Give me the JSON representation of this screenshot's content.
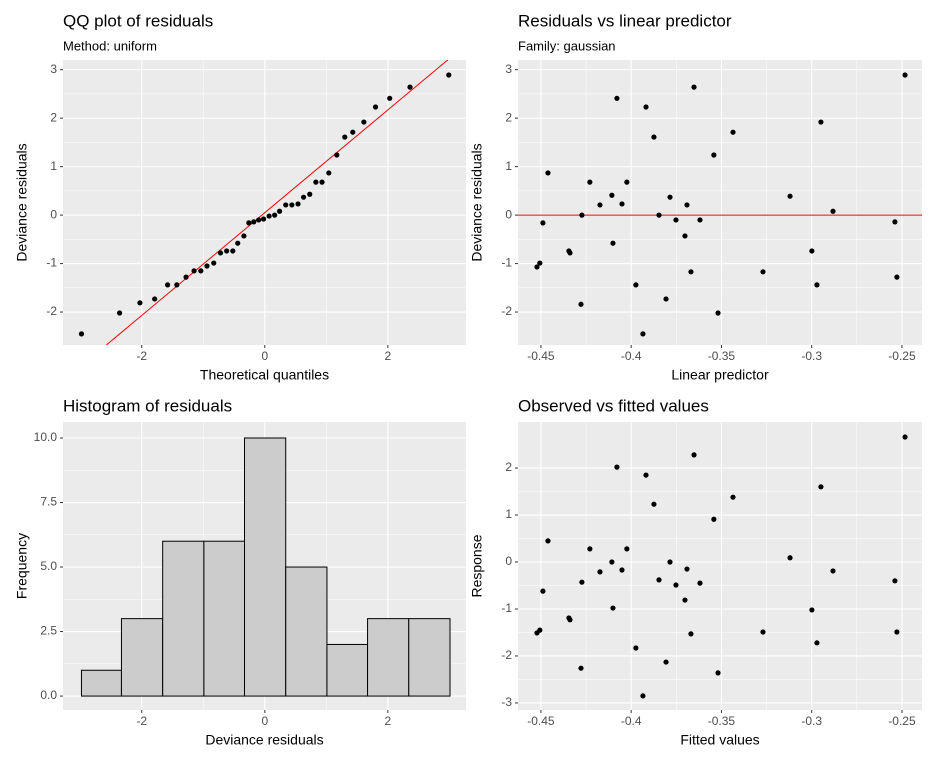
{
  "chart_data": [
    {
      "type": "qq",
      "title": "QQ plot of residuals",
      "subtitle": "Method: uniform",
      "x_label": "Theoretical quantiles",
      "y_label": "Deviance residuals",
      "x": [
        -2.98,
        -2.36,
        -2.03,
        -1.79,
        -1.58,
        -1.43,
        -1.28,
        -1.15,
        -1.04,
        -0.94,
        -0.83,
        -0.72,
        -0.62,
        -0.52,
        -0.44,
        -0.34,
        -0.26,
        -0.18,
        -0.1,
        -0.02,
        0.07,
        0.16,
        0.24,
        0.34,
        0.44,
        0.54,
        0.63,
        0.73,
        0.83,
        0.93,
        1.04,
        1.17,
        1.3,
        1.43,
        1.61,
        1.8,
        2.03,
        2.36,
        2.99
      ],
      "values": [
        -2.45,
        -2.02,
        -1.81,
        -1.73,
        -1.44,
        -1.44,
        -1.28,
        -1.15,
        -1.15,
        -1.05,
        -0.99,
        -0.78,
        -0.74,
        -0.74,
        -0.58,
        -0.43,
        -0.16,
        -0.14,
        -0.1,
        -0.08,
        -0.02,
        0,
        0.08,
        0.21,
        0.21,
        0.23,
        0.37,
        0.43,
        0.68,
        0.68,
        0.87,
        1.24,
        1.61,
        1.71,
        1.92,
        2.23,
        2.41,
        2.64,
        2.89
      ],
      "color": "#000000",
      "ref_line": {
        "intercept": 0.05,
        "slope": 1.06,
        "color": "#ff0000"
      },
      "xlim": [
        -3.28,
        3.27
      ],
      "ylim": [
        -2.68,
        3.2
      ],
      "xticks": [
        -2,
        0,
        2
      ],
      "yticks": [
        -2,
        -1,
        0,
        1,
        2,
        3
      ],
      "grid": true
    },
    {
      "type": "scatter",
      "title": "Residuals vs linear predictor",
      "subtitle": "Family: gaussian",
      "x_label": "Linear predictor",
      "y_label": "Deviance residuals",
      "x": [
        -0.4522,
        -0.4506,
        -0.4489,
        -0.4461,
        -0.4345,
        -0.4339,
        -0.4278,
        -0.4273,
        -0.4229,
        -0.4173,
        -0.4107,
        -0.4101,
        -0.4079,
        -0.4051,
        -0.4024,
        -0.3974,
        -0.3935,
        -0.3918,
        -0.3874,
        -0.3846,
        -0.3807,
        -0.3785,
        -0.3752,
        -0.3702,
        -0.3691,
        -0.3669,
        -0.3652,
        -0.3619,
        -0.3542,
        -0.3519,
        -0.3436,
        -0.327,
        -0.312,
        -0.2999,
        -0.2971,
        -0.2949,
        -0.2882,
        -0.2539,
        -0.2528,
        -0.2483
      ],
      "values": [
        -1.07,
        -0.99,
        -0.16,
        0.87,
        -0.74,
        -0.78,
        -1.84,
        0,
        0.68,
        0.21,
        0.41,
        -0.58,
        2.41,
        0.23,
        0.68,
        -1.44,
        -2.45,
        2.23,
        1.61,
        0,
        -1.73,
        0.37,
        -0.1,
        -0.43,
        0.21,
        -1.17,
        2.64,
        -0.1,
        1.24,
        -2.02,
        1.71,
        -1.17,
        0.39,
        -0.74,
        -1.44,
        1.92,
        0.08,
        -0.14,
        -1.28,
        2.89
      ],
      "color": "#000000",
      "hline": {
        "value": 0,
        "color": "#ff0000"
      },
      "xlim": [
        -0.4627,
        -0.2389
      ],
      "ylim": [
        -2.68,
        3.2
      ],
      "xticks": [
        -0.45,
        -0.4,
        -0.35,
        -0.3,
        -0.25
      ],
      "yticks": [
        -2,
        -1,
        0,
        1,
        2,
        3
      ],
      "grid": true
    },
    {
      "type": "histogram",
      "title": "Histogram of residuals",
      "x_label": "Deviance residuals",
      "y_label": "Frequency",
      "bins": [
        -2.98,
        -2.33,
        -1.66,
        -0.99,
        -0.33,
        0.34,
        1.01,
        1.67,
        2.34,
        3.01
      ],
      "values": [
        1,
        3,
        6,
        6,
        10,
        5,
        2,
        3,
        3
      ],
      "color": "#cccccc",
      "edge_color": "#000000",
      "xlim": [
        -3.28,
        3.27
      ],
      "ylim": [
        -0.54,
        10.62
      ],
      "xticks": [
        -2,
        0,
        2
      ],
      "yticks": [
        {
          "value": 0,
          "label": "0.0"
        },
        {
          "value": 2.5,
          "label": "2.5"
        },
        {
          "value": 5,
          "label": "5.0"
        },
        {
          "value": 7.5,
          "label": "7.5"
        },
        {
          "value": 10,
          "label": "10.0"
        }
      ],
      "grid": true
    },
    {
      "type": "scatter",
      "title": "Observed vs fitted values",
      "x_label": "Fitted values",
      "y_label": "Response",
      "x": [
        -0.4522,
        -0.4506,
        -0.4489,
        -0.4461,
        -0.4345,
        -0.4339,
        -0.4278,
        -0.4273,
        -0.4229,
        -0.4173,
        -0.4107,
        -0.4101,
        -0.4079,
        -0.4051,
        -0.4024,
        -0.3974,
        -0.3935,
        -0.3918,
        -0.3874,
        -0.3846,
        -0.3807,
        -0.3785,
        -0.3752,
        -0.3702,
        -0.3691,
        -0.3669,
        -0.3652,
        -0.3619,
        -0.3542,
        -0.3519,
        -0.3436,
        -0.327,
        -0.312,
        -0.2999,
        -0.2971,
        -0.2949,
        -0.2882,
        -0.2539,
        -0.2528,
        -0.2483
      ],
      "values": [
        -1.51,
        -1.45,
        -0.62,
        0.45,
        -1.19,
        -1.23,
        -2.26,
        -0.43,
        0.28,
        -0.21,
        0,
        -0.98,
        2.02,
        -0.17,
        0.28,
        -1.83,
        -2.85,
        1.85,
        1.23,
        -0.38,
        -2.13,
        0,
        -0.49,
        -0.81,
        -0.15,
        -1.53,
        2.28,
        -0.45,
        0.91,
        -2.36,
        1.38,
        -1.49,
        0.09,
        -1.02,
        -1.72,
        1.6,
        -0.19,
        -0.4,
        -1.49,
        2.66
      ],
      "color": "#000000",
      "xlim": [
        -0.4627,
        -0.2389
      ],
      "ylim": [
        -3.15,
        2.98
      ],
      "xticks": [
        -0.45,
        -0.4,
        -0.35,
        -0.3,
        -0.25
      ],
      "yticks": [
        -3,
        -2,
        -1,
        0,
        1,
        2
      ],
      "grid": true
    }
  ]
}
